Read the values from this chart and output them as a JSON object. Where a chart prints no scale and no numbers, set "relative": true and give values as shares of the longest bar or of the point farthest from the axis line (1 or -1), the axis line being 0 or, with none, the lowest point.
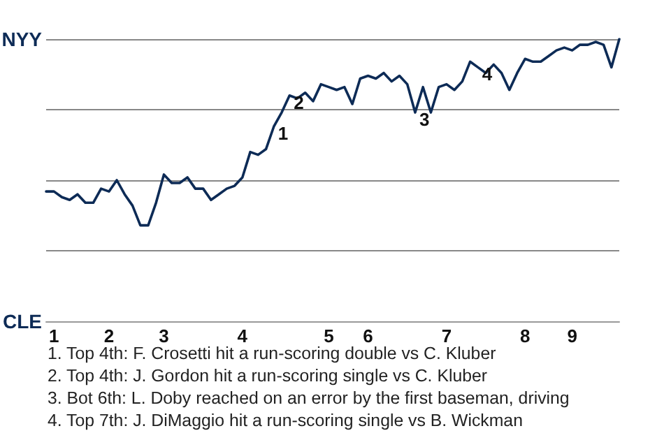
{
  "chart_data": {
    "type": "line",
    "relative": true,
    "categories": [
      null,
      "1",
      null,
      null,
      null,
      null,
      null,
      null,
      "2",
      null,
      null,
      null,
      null,
      null,
      null,
      "3",
      null,
      null,
      null,
      null,
      null,
      null,
      null,
      null,
      null,
      "4",
      null,
      null,
      null,
      null,
      null,
      null,
      null,
      null,
      null,
      null,
      "5",
      null,
      null,
      null,
      null,
      "6",
      null,
      null,
      null,
      null,
      null,
      null,
      null,
      null,
      null,
      "7",
      null,
      null,
      null,
      null,
      null,
      null,
      null,
      null,
      null,
      "8",
      null,
      null,
      null,
      null,
      null,
      "9",
      null,
      null,
      null,
      null,
      null,
      null
    ],
    "series": [
      {
        "color": "#0d2b56",
        "values": [
          0.46,
          0.46,
          0.44,
          0.43,
          0.45,
          0.42,
          0.42,
          0.47,
          0.46,
          0.5,
          0.45,
          0.41,
          0.34,
          0.34,
          0.42,
          0.52,
          0.49,
          0.49,
          0.51,
          0.47,
          0.47,
          0.43,
          0.45,
          0.47,
          0.48,
          0.51,
          0.6,
          0.59,
          0.61,
          0.69,
          0.74,
          0.8,
          0.79,
          0.81,
          0.78,
          0.84,
          0.83,
          0.82,
          0.83,
          0.77,
          0.86,
          0.87,
          0.86,
          0.88,
          0.85,
          0.87,
          0.84,
          0.74,
          0.83,
          0.74,
          0.83,
          0.84,
          0.82,
          0.85,
          0.92,
          0.9,
          0.88,
          0.91,
          0.88,
          0.82,
          0.88,
          0.93,
          0.92,
          0.92,
          0.94,
          0.96,
          0.97,
          0.96,
          0.98,
          0.98,
          0.99,
          0.98,
          0.9,
          1.0
        ]
      }
    ],
    "marker": "none",
    "line_style": "solid",
    "ref_lines": [
      {
        "axis": "y",
        "value": 0.25,
        "color": "#888888"
      },
      {
        "axis": "y",
        "value": 0.5,
        "color": "#888888"
      },
      {
        "axis": "y",
        "value": 0.75,
        "color": "#888888"
      },
      {
        "axis": "y",
        "value": 1.0,
        "color": "#888888"
      }
    ],
    "annotations": [
      "NYY",
      "CLE",
      {
        "text": "1",
        "y": 0.69
      },
      {
        "text": "2",
        "y": 0.8
      },
      {
        "text": "3",
        "y": 0.74
      },
      {
        "text": "4",
        "y": 0.9
      },
      "1. Top 4th: F. Crosetti hit a run-scoring double vs C. Kluber",
      "2. Top 4th: J. Gordon hit a run-scoring single vs C. Kluber",
      "3. Bot 6th: L. Doby reached on an error by the first baseman, driving",
      "4. Top 7th: J. DiMaggio hit a run-scoring single vs B. Wickman"
    ]
  }
}
